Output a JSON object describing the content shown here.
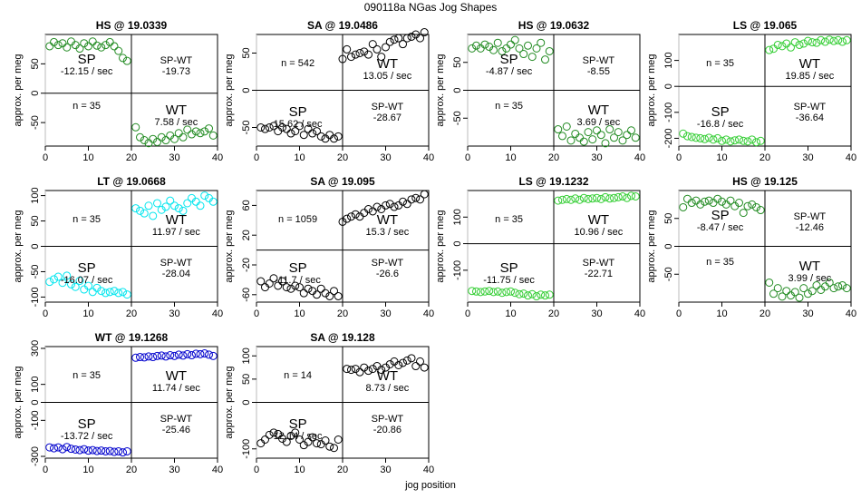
{
  "figure": {
    "title": "090118a   NGas Jog Shapes",
    "xlabel": "jog position",
    "ylabel": "approx. per meg"
  },
  "chart_data": [
    {
      "type": "scatter",
      "title": "HS @ 19.0339",
      "color": "#228b22",
      "xlim": [
        0,
        40
      ],
      "ylim": [
        -90,
        100
      ],
      "xticks": [
        0,
        10,
        20,
        30,
        40
      ],
      "yticks": [
        -50,
        0,
        50
      ],
      "n_label": "n = 35",
      "annotations": {
        "sp_label": "SP",
        "sp_rate": "-12.15 / sec",
        "spwt_label": "SP-WT",
        "spwt_value": "-19.73",
        "wt_label": "WT",
        "wt_rate": "7.58 / sec"
      },
      "layout": "sp-top",
      "series": [
        {
          "x": [
            1,
            2,
            3,
            4,
            5,
            6,
            7,
            8,
            9,
            10,
            11,
            12,
            13,
            14,
            15,
            16,
            17,
            18,
            19,
            21,
            22,
            23,
            24,
            25,
            26,
            27,
            28,
            29,
            30,
            31,
            32,
            33,
            34,
            35,
            36,
            37,
            38,
            39
          ],
          "y": [
            80,
            87,
            82,
            85,
            78,
            88,
            82,
            76,
            85,
            80,
            88,
            81,
            78,
            82,
            87,
            80,
            72,
            60,
            55,
            -58,
            -75,
            -80,
            -85,
            -78,
            -83,
            -75,
            -80,
            -72,
            -78,
            -68,
            -75,
            -62,
            -70,
            -65,
            -68,
            -65,
            -60,
            -72
          ]
        }
      ]
    },
    {
      "type": "scatter",
      "title": "SA @ 19.0486",
      "color": "#000000",
      "xlim": [
        0,
        40
      ],
      "ylim": [
        -75,
        75
      ],
      "xticks": [
        0,
        10,
        20,
        30,
        40
      ],
      "yticks": [
        -50,
        0,
        50
      ],
      "n_label": "n = 542",
      "annotations": {
        "sp_label": "SP",
        "sp_rate": "15.62 / sec",
        "spwt_label": "SP-WT",
        "spwt_value": "-28.67",
        "wt_label": "WT",
        "wt_rate": "13.05 / sec"
      },
      "layout": "sp-bottom",
      "series": [
        {
          "x": [
            1,
            2,
            3,
            4,
            5,
            6,
            7,
            8,
            9,
            10,
            11,
            12,
            13,
            14,
            15,
            16,
            17,
            18,
            19,
            20,
            21,
            22,
            23,
            24,
            25,
            26,
            27,
            28,
            29,
            30,
            31,
            32,
            33,
            34,
            35,
            36,
            37,
            38,
            39
          ],
          "y": [
            -50,
            -52,
            -50,
            -48,
            -55,
            -50,
            -52,
            -58,
            -55,
            -48,
            -60,
            -52,
            -58,
            -55,
            -62,
            -65,
            -60,
            -65,
            -62,
            42,
            55,
            45,
            48,
            50,
            52,
            48,
            62,
            55,
            45,
            58,
            65,
            68,
            70,
            62,
            70,
            72,
            75,
            70,
            78
          ]
        }
      ]
    },
    {
      "type": "scatter",
      "title": "HS @ 19.0632",
      "color": "#228b22",
      "xlim": [
        0,
        40
      ],
      "ylim": [
        -100,
        100
      ],
      "xticks": [
        0,
        10,
        20,
        30,
        40
      ],
      "yticks": [
        -50,
        0,
        50
      ],
      "n_label": "n = 35",
      "annotations": {
        "sp_label": "SP",
        "sp_rate": "-4.87 / sec",
        "spwt_label": "SP-WT",
        "spwt_value": "-8.55",
        "wt_label": "WT",
        "wt_rate": "3.69 / sec"
      },
      "layout": "sp-top",
      "series": [
        {
          "x": [
            1,
            2,
            3,
            4,
            5,
            6,
            7,
            8,
            9,
            10,
            11,
            12,
            13,
            14,
            15,
            16,
            17,
            18,
            19,
            21,
            22,
            23,
            24,
            25,
            26,
            27,
            28,
            29,
            30,
            31,
            32,
            33,
            34,
            35,
            36,
            37,
            38,
            39
          ],
          "y": [
            75,
            80,
            75,
            82,
            78,
            72,
            85,
            70,
            75,
            82,
            90,
            75,
            65,
            80,
            60,
            75,
            85,
            55,
            70,
            -70,
            -82,
            -65,
            -90,
            -78,
            -85,
            -92,
            -75,
            -88,
            -72,
            -80,
            -95,
            -70,
            -85,
            -75,
            -90,
            -80,
            -72,
            -85
          ]
        }
      ]
    },
    {
      "type": "scatter",
      "title": "LS @ 19.065",
      "color": "#32cd32",
      "xlim": [
        0,
        40
      ],
      "ylim": [
        -230,
        200
      ],
      "xticks": [
        0,
        10,
        20,
        30,
        40
      ],
      "yticks": [
        -200,
        -100,
        0,
        100
      ],
      "n_label": "n = 35",
      "annotations": {
        "sp_label": "SP",
        "sp_rate": "-16.8 / sec",
        "spwt_label": "SP-WT",
        "spwt_value": "-36.64",
        "wt_label": "WT",
        "wt_rate": "19.85 / sec"
      },
      "layout": "sp-bottom",
      "series": [
        {
          "x": [
            1,
            2,
            3,
            4,
            5,
            6,
            7,
            8,
            9,
            10,
            11,
            12,
            13,
            14,
            15,
            16,
            17,
            18,
            19,
            21,
            22,
            23,
            24,
            25,
            26,
            27,
            28,
            29,
            30,
            31,
            32,
            33,
            34,
            35,
            36,
            37,
            38,
            39
          ],
          "y": [
            -182,
            -192,
            -195,
            -198,
            -200,
            -203,
            -198,
            -205,
            -200,
            -210,
            -205,
            -212,
            -208,
            -205,
            -210,
            -212,
            -205,
            -215,
            -210,
            140,
            145,
            160,
            155,
            165,
            150,
            170,
            160,
            165,
            175,
            170,
            168,
            178,
            172,
            180,
            175,
            178,
            172,
            178
          ]
        }
      ]
    },
    {
      "type": "scatter",
      "title": "LT @ 19.0668",
      "color": "#00e5ee",
      "xlim": [
        0,
        40
      ],
      "ylim": [
        -110,
        110
      ],
      "xticks": [
        0,
        10,
        20,
        30,
        40
      ],
      "yticks": [
        -100,
        -50,
        0,
        50,
        100
      ],
      "n_label": "n = 35",
      "annotations": {
        "sp_label": "SP",
        "sp_rate": "-16.07 / sec",
        "spwt_label": "SP-WT",
        "spwt_value": "-28.04",
        "wt_label": "WT",
        "wt_rate": "11.97 / sec"
      },
      "layout": "sp-bottom",
      "series": [
        {
          "x": [
            1,
            2,
            3,
            4,
            5,
            6,
            7,
            8,
            9,
            10,
            11,
            12,
            13,
            14,
            15,
            16,
            17,
            18,
            19,
            21,
            22,
            23,
            24,
            25,
            26,
            27,
            28,
            29,
            30,
            31,
            32,
            33,
            34,
            35,
            36,
            37,
            38,
            39
          ],
          "y": [
            -70,
            -65,
            -60,
            -72,
            -58,
            -75,
            -80,
            -68,
            -85,
            -78,
            -90,
            -82,
            -88,
            -92,
            -90,
            -88,
            -92,
            -90,
            -95,
            75,
            70,
            65,
            80,
            60,
            85,
            72,
            78,
            90,
            80,
            75,
            70,
            85,
            95,
            88,
            80,
            100,
            95,
            88
          ]
        }
      ]
    },
    {
      "type": "scatter",
      "title": "SA @ 19.095",
      "color": "#000000",
      "xlim": [
        0,
        40
      ],
      "ylim": [
        -70,
        80
      ],
      "xticks": [
        0,
        10,
        20,
        30,
        40
      ],
      "yticks": [
        -60,
        -20,
        20,
        60
      ],
      "n_label": "n = 1059",
      "annotations": {
        "sp_label": "SP",
        "sp_rate": "-11.7 / sec",
        "spwt_label": "SP-WT",
        "spwt_value": "-26.6",
        "wt_label": "WT",
        "wt_rate": "15.3 / sec"
      },
      "layout": "sp-bottom",
      "series": [
        {
          "x": [
            1,
            2,
            3,
            4,
            5,
            6,
            7,
            8,
            9,
            10,
            11,
            12,
            13,
            14,
            15,
            16,
            17,
            18,
            19,
            20,
            21,
            22,
            23,
            24,
            25,
            26,
            27,
            28,
            29,
            30,
            31,
            32,
            33,
            34,
            35,
            36,
            37,
            38,
            39
          ],
          "y": [
            -42,
            -50,
            -45,
            -38,
            -48,
            -42,
            -50,
            -52,
            -48,
            -50,
            -58,
            -52,
            -55,
            -60,
            -52,
            -58,
            -62,
            -55,
            -62,
            38,
            42,
            45,
            48,
            45,
            50,
            55,
            52,
            58,
            55,
            60,
            62,
            58,
            60,
            65,
            62,
            68,
            70,
            68,
            75
          ]
        }
      ]
    },
    {
      "type": "scatter",
      "title": "LS @ 19.1232",
      "color": "#32cd32",
      "xlim": [
        0,
        40
      ],
      "ylim": [
        -220,
        200
      ],
      "xticks": [
        0,
        10,
        20,
        30,
        40
      ],
      "yticks": [
        -100,
        0,
        100
      ],
      "n_label": "n = 35",
      "annotations": {
        "sp_label": "SP",
        "sp_rate": "-11.75 / sec",
        "spwt_label": "SP-WT",
        "spwt_value": "-22.71",
        "wt_label": "WT",
        "wt_rate": "10.96 / sec"
      },
      "layout": "sp-bottom",
      "series": [
        {
          "x": [
            1,
            2,
            3,
            4,
            5,
            6,
            7,
            8,
            9,
            10,
            11,
            12,
            13,
            14,
            15,
            16,
            17,
            18,
            19,
            21,
            22,
            23,
            24,
            25,
            26,
            27,
            28,
            29,
            30,
            31,
            32,
            33,
            34,
            35,
            36,
            37,
            38,
            39
          ],
          "y": [
            -178,
            -180,
            -182,
            -180,
            -178,
            -182,
            -180,
            -185,
            -182,
            -180,
            -185,
            -190,
            -188,
            -195,
            -190,
            -198,
            -192,
            -195,
            -192,
            162,
            165,
            168,
            165,
            170,
            165,
            172,
            168,
            170,
            172,
            168,
            175,
            170,
            172,
            175,
            178,
            172,
            180,
            178
          ]
        }
      ]
    },
    {
      "type": "scatter",
      "title": "HS @ 19.125",
      "color": "#228b22",
      "xlim": [
        0,
        40
      ],
      "ylim": [
        -100,
        100
      ],
      "xticks": [
        0,
        10,
        20,
        30,
        40
      ],
      "yticks": [
        -50,
        0,
        50
      ],
      "n_label": "n = 35",
      "annotations": {
        "sp_label": "SP",
        "sp_rate": "-8.47 / sec",
        "spwt_label": "SP-WT",
        "spwt_value": "-12.46",
        "wt_label": "WT",
        "wt_rate": "3.99 / sec"
      },
      "layout": "sp-top",
      "series": [
        {
          "x": [
            1,
            2,
            3,
            4,
            5,
            6,
            7,
            8,
            9,
            10,
            11,
            12,
            13,
            14,
            15,
            16,
            17,
            18,
            19,
            21,
            22,
            23,
            24,
            25,
            26,
            27,
            28,
            29,
            30,
            31,
            32,
            33,
            34,
            35,
            36,
            37,
            38,
            39
          ],
          "y": [
            70,
            85,
            78,
            82,
            75,
            80,
            82,
            78,
            85,
            80,
            75,
            82,
            72,
            78,
            60,
            72,
            75,
            70,
            65,
            -65,
            -85,
            -75,
            -90,
            -80,
            -88,
            -82,
            -92,
            -75,
            -85,
            -80,
            -70,
            -78,
            -72,
            -65,
            -75,
            -72,
            -70,
            -75
          ]
        }
      ]
    },
    {
      "type": "scatter",
      "title": "WT @ 19.1268",
      "color": "#0000cd",
      "xlim": [
        0,
        40
      ],
      "ylim": [
        -310,
        310
      ],
      "xticks": [
        0,
        10,
        20,
        30,
        40
      ],
      "yticks": [
        -300,
        -100,
        0,
        100,
        300
      ],
      "n_label": "n = 35",
      "annotations": {
        "sp_label": "SP",
        "sp_rate": "-13.72 / sec",
        "spwt_label": "SP-WT",
        "spwt_value": "-25.46",
        "wt_label": "WT",
        "wt_rate": "11.74 / sec"
      },
      "layout": "sp-bottom",
      "series": [
        {
          "x": [
            1,
            2,
            3,
            4,
            5,
            6,
            7,
            8,
            9,
            10,
            11,
            12,
            13,
            14,
            15,
            16,
            17,
            18,
            19,
            21,
            22,
            23,
            24,
            25,
            26,
            27,
            28,
            29,
            30,
            31,
            32,
            33,
            34,
            35,
            36,
            37,
            38,
            39
          ],
          "y": [
            -250,
            -255,
            -250,
            -260,
            -248,
            -258,
            -262,
            -265,
            -260,
            -268,
            -265,
            -270,
            -268,
            -272,
            -270,
            -275,
            -272,
            -278,
            -272,
            248,
            252,
            250,
            255,
            252,
            258,
            260,
            255,
            262,
            258,
            265,
            260,
            268,
            262,
            270,
            268,
            272,
            265,
            258
          ]
        }
      ]
    },
    {
      "type": "scatter",
      "title": "SA @ 19.128",
      "color": "#000000",
      "xlim": [
        0,
        40
      ],
      "ylim": [
        -120,
        120
      ],
      "xticks": [
        0,
        10,
        20,
        30,
        40
      ],
      "yticks": [
        -100,
        0,
        50,
        100
      ],
      "n_label": "n = 14",
      "annotations": {
        "sp_label": "SP",
        "sp_rate": "12.14 / sec",
        "spwt_label": "SP-WT",
        "spwt_value": "-20.86",
        "wt_label": "WT",
        "wt_rate": "8.73 / sec"
      },
      "layout": "sp-bottom",
      "series": [
        {
          "x": [
            1,
            2,
            3,
            4,
            5,
            6,
            7,
            8,
            9,
            10,
            11,
            12,
            13,
            14,
            15,
            16,
            17,
            18,
            19,
            21,
            22,
            23,
            24,
            25,
            26,
            27,
            28,
            29,
            30,
            31,
            32,
            33,
            34,
            35,
            36,
            37,
            38,
            39
          ],
          "y": [
            -88,
            -80,
            -70,
            -65,
            -68,
            -78,
            -85,
            -72,
            -65,
            -80,
            -92,
            -85,
            -75,
            -88,
            -90,
            -82,
            -95,
            -98,
            -80,
            72,
            70,
            72,
            65,
            75,
            68,
            72,
            78,
            70,
            75,
            82,
            88,
            80,
            85,
            90,
            95,
            78,
            88,
            75
          ]
        }
      ]
    }
  ]
}
